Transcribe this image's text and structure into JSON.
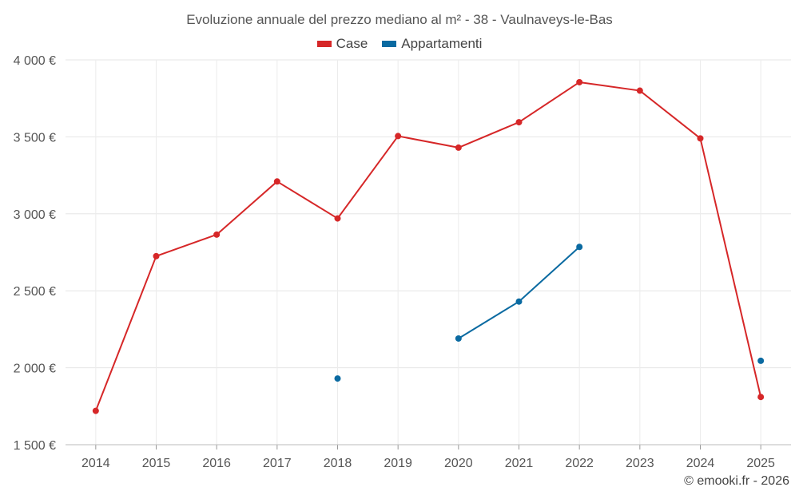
{
  "chart_data": {
    "type": "line",
    "title": "Evoluzione annuale del prezzo mediano al m² - 38 - Vaulnaveys-le-Bas",
    "categories": [
      "2014",
      "2015",
      "2016",
      "2017",
      "2018",
      "2019",
      "2020",
      "2021",
      "2022",
      "2023",
      "2024",
      "2025"
    ],
    "ylim": [
      1500,
      4000
    ],
    "yticks": [
      1500,
      2000,
      2500,
      3000,
      3500,
      4000
    ],
    "ytick_labels": [
      "1 500 €",
      "2 000 €",
      "2 500 €",
      "3 000 €",
      "3 500 €",
      "4 000 €"
    ],
    "grid": true,
    "legend_position": "top-center",
    "series": [
      {
        "name": "Case",
        "color": "#d62728",
        "values": [
          1720,
          2725,
          2865,
          3210,
          2970,
          3505,
          3430,
          3595,
          3855,
          3800,
          3490,
          1810
        ]
      },
      {
        "name": "Appartamenti",
        "color": "#0a6aa1",
        "values": [
          null,
          null,
          null,
          null,
          1930,
          null,
          2190,
          2430,
          2785,
          null,
          null,
          2045
        ]
      }
    ]
  },
  "credit": "© emooki.fr - 2026"
}
